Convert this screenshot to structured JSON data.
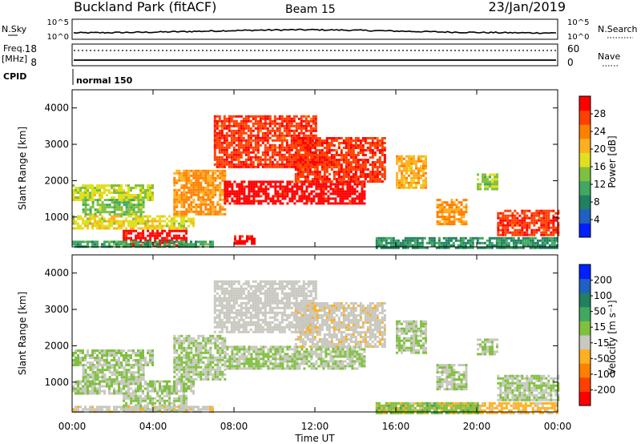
{
  "header": {
    "site": "Buckland Park (fitACF)",
    "beam": "Beam 15",
    "date": "23/Jan/2019"
  },
  "top_panels": {
    "nsky": {
      "label": "N.Sky",
      "ticks": [
        "10^5",
        "10^0"
      ],
      "right_ticks": [
        "10^5",
        "10^0"
      ],
      "right_label": "N.Search"
    },
    "freq": {
      "label_1": "Freq.",
      "label_2": "[MHz]",
      "ticks": [
        "18",
        "8"
      ],
      "right_ticks": [
        "60",
        "0"
      ],
      "right_label": "Nave"
    },
    "cpid": {
      "label": "CPID",
      "value": "normal 150"
    }
  },
  "chart_data": [
    {
      "type": "heatmap",
      "name": "Power",
      "ylabel": "Slant Range [km]",
      "xlabel": "",
      "xlim": [
        0,
        24
      ],
      "ylim": [
        180,
        4500
      ],
      "yticks": [
        1000,
        2000,
        3000,
        4000
      ],
      "colorbar": {
        "label": "Power [dB]",
        "ticks": [
          4,
          8,
          12,
          16,
          20,
          24,
          28
        ],
        "range": [
          0,
          32
        ],
        "colors": [
          "#0020ff",
          "#2060c0",
          "#208060",
          "#40a860",
          "#80c040",
          "#e0e020",
          "#ffb020",
          "#ff8000",
          "#ff4000",
          "#ff0000"
        ]
      },
      "regions": [
        {
          "t": [
            0.0,
            4.0
          ],
          "r": [
            1500,
            1900
          ],
          "v": 17
        },
        {
          "t": [
            0.5,
            3.5
          ],
          "r": [
            1100,
            1500
          ],
          "v": 14
        },
        {
          "t": [
            0.0,
            6.0
          ],
          "r": [
            700,
            1050
          ],
          "v": 18
        },
        {
          "t": [
            2.5,
            5.7
          ],
          "r": [
            250,
            650
          ],
          "v": 31
        },
        {
          "t": [
            0.0,
            7.0
          ],
          "r": [
            180,
            350
          ],
          "v": 11
        },
        {
          "t": [
            5.0,
            7.5
          ],
          "r": [
            1100,
            2300
          ],
          "v": 23
        },
        {
          "t": [
            7.0,
            12.0
          ],
          "r": [
            2400,
            3800
          ],
          "v": 28
        },
        {
          "t": [
            7.5,
            14.5
          ],
          "r": [
            1400,
            2000
          ],
          "v": 31
        },
        {
          "t": [
            11.0,
            15.5
          ],
          "r": [
            2000,
            3200
          ],
          "v": 28
        },
        {
          "t": [
            8.0,
            9.0
          ],
          "r": [
            250,
            500
          ],
          "v": 30
        },
        {
          "t": [
            16.0,
            17.5
          ],
          "r": [
            1800,
            2700
          ],
          "v": 21
        },
        {
          "t": [
            18.0,
            19.5
          ],
          "r": [
            800,
            1500
          ],
          "v": 23
        },
        {
          "t": [
            20.0,
            21.0
          ],
          "r": [
            1800,
            2200
          ],
          "v": 15
        },
        {
          "t": [
            21.0,
            24.0
          ],
          "r": [
            500,
            1200
          ],
          "v": 28
        },
        {
          "t": [
            15.0,
            24.0
          ],
          "r": [
            180,
            450
          ],
          "v": 9
        }
      ]
    },
    {
      "type": "heatmap",
      "name": "Velocity",
      "ylabel": "Slant Range [km]",
      "xlabel": "Time UT",
      "xlim": [
        0,
        24
      ],
      "ylim": [
        180,
        4500
      ],
      "yticks": [
        1000,
        2000,
        3000,
        4000
      ],
      "xticks": [
        "00:00",
        "04:00",
        "08:00",
        "12:00",
        "16:00",
        "20:00",
        "00:00"
      ],
      "colorbar": {
        "label": "Velocity [m s⁻¹]",
        "ticks": [
          200,
          100,
          50,
          15,
          -15,
          -50,
          -100,
          -200
        ],
        "range": [
          -250,
          250
        ],
        "colors": [
          "#ff0000",
          "#ff4000",
          "#ff8000",
          "#ffb020",
          "#c8c8c0",
          "#80c040",
          "#40a860",
          "#208060",
          "#2060c0",
          "#0020ff"
        ]
      },
      "regions": [
        {
          "t": [
            0.0,
            4.0
          ],
          "r": [
            1500,
            1900
          ],
          "v": 0
        },
        {
          "t": [
            0.5,
            3.5
          ],
          "r": [
            1100,
            1500
          ],
          "v": 0
        },
        {
          "t": [
            0.0,
            6.0
          ],
          "r": [
            700,
            1050
          ],
          "v": 0
        },
        {
          "t": [
            2.5,
            5.7
          ],
          "r": [
            250,
            650
          ],
          "v": 0
        },
        {
          "t": [
            0.0,
            7.0
          ],
          "r": [
            180,
            350
          ],
          "v": -40
        },
        {
          "t": [
            5.0,
            7.5
          ],
          "r": [
            1100,
            2300
          ],
          "v": 0
        },
        {
          "t": [
            7.0,
            12.0
          ],
          "r": [
            2400,
            3800
          ],
          "v": -30
        },
        {
          "t": [
            7.5,
            14.5
          ],
          "r": [
            1400,
            2000
          ],
          "v": 0
        },
        {
          "t": [
            11.0,
            15.5
          ],
          "r": [
            2000,
            3200
          ],
          "v": -40
        },
        {
          "t": [
            16.0,
            17.5
          ],
          "r": [
            1800,
            2700
          ],
          "v": 0
        },
        {
          "t": [
            18.0,
            19.5
          ],
          "r": [
            800,
            1500
          ],
          "v": 0
        },
        {
          "t": [
            20.0,
            21.0
          ],
          "r": [
            1800,
            2200
          ],
          "v": 0
        },
        {
          "t": [
            21.0,
            24.0
          ],
          "r": [
            500,
            1200
          ],
          "v": 0
        },
        {
          "t": [
            15.0,
            24.0
          ],
          "r": [
            180,
            450
          ],
          "v": -60
        },
        {
          "t": [
            15.0,
            20.0
          ],
          "r": [
            180,
            450
          ],
          "v": 40
        }
      ]
    }
  ]
}
